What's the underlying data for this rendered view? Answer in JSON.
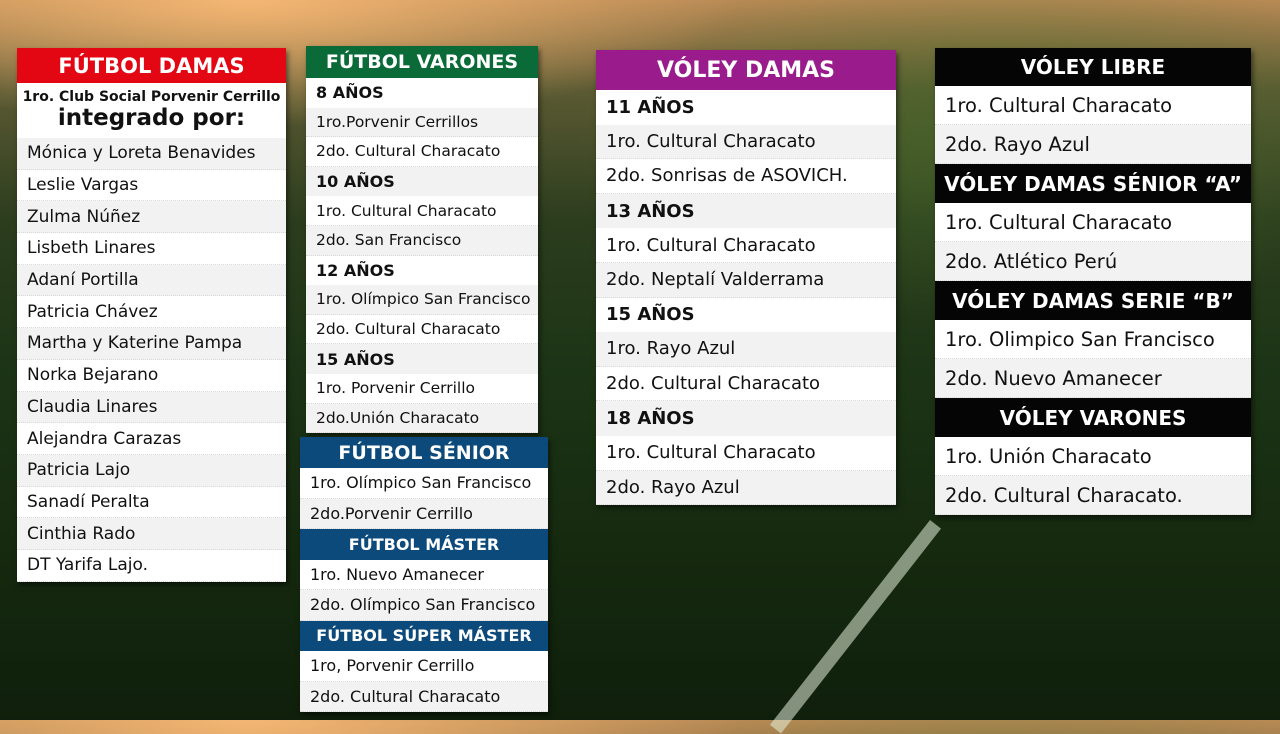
{
  "colors": {
    "futbol_damas": "#e30613",
    "futbol_varones": "#0b6b38",
    "futbol_senior": "#0d4a7c",
    "voley_damas": "#9a1c8c",
    "voley": "#050505"
  },
  "panels": [
    {
      "id": "futbol-damas",
      "color": "#e30613",
      "rows": [
        {
          "type": "head",
          "text": "FÚTBOL DAMAS"
        },
        {
          "type": "item",
          "text": "Mónica y Loreta Benavides"
        },
        {
          "type": "item",
          "text": "Leslie Vargas"
        },
        {
          "type": "item",
          "text": "Zulma Núñez"
        },
        {
          "type": "item",
          "text": "Lisbeth Linares"
        },
        {
          "type": "item",
          "text": "Adaní Portilla"
        },
        {
          "type": "item",
          "text": "Patricia Chávez"
        },
        {
          "type": "item",
          "text": "Martha y Katerine Pampa"
        },
        {
          "type": "item",
          "text": "Norka Bejarano"
        },
        {
          "type": "item",
          "text": "Claudia Linares"
        },
        {
          "type": "item",
          "text": "Alejandra Carazas"
        },
        {
          "type": "item",
          "text": "Patricia Lajo"
        },
        {
          "type": "item",
          "text": "Sanadí Peralta"
        },
        {
          "type": "item",
          "text": "Cinthia Rado"
        },
        {
          "type": "item",
          "text": "DT Yarifa Lajo."
        }
      ],
      "subtitle_line1": "1ro. Club Social Porvenir Cerrillo",
      "subtitle_line2": "integrado por:"
    },
    {
      "id": "futbol-varones",
      "color": "#0b6b38",
      "rows": [
        {
          "type": "head",
          "text": "FÚTBOL VARONES"
        },
        {
          "type": "sub",
          "text": "8 AÑOS"
        },
        {
          "type": "item",
          "text": "1ro.Porvenir Cerrillos"
        },
        {
          "type": "item",
          "text": "2do. Cultural Characato"
        },
        {
          "type": "sub",
          "text": "10 AÑOS"
        },
        {
          "type": "item",
          "text": "1ro. Cultural Characato"
        },
        {
          "type": "item",
          "text": "2do. San Francisco"
        },
        {
          "type": "sub",
          "text": "12 AÑOS"
        },
        {
          "type": "item",
          "text": "1ro. Olímpico San Francisco"
        },
        {
          "type": "item",
          "text": "2do. Cultural Characato"
        },
        {
          "type": "sub",
          "text": "15 AÑOS"
        },
        {
          "type": "item",
          "text": "1ro. Porvenir Cerrillo"
        },
        {
          "type": "item",
          "text": "2do.Unión Characato"
        }
      ]
    },
    {
      "id": "futbol-senior",
      "color": "#0d4a7c",
      "rows": [
        {
          "type": "head",
          "text": "FÚTBOL SÉNIOR"
        },
        {
          "type": "item",
          "text": "1ro. Olímpico San Francisco"
        },
        {
          "type": "item",
          "text": "2do.Porvenir Cerrillo"
        },
        {
          "type": "head",
          "text": "FÚTBOL MÁSTER"
        },
        {
          "type": "item",
          "text": "1ro. Nuevo Amanecer"
        },
        {
          "type": "item",
          "text": "2do. Olímpico San Francisco"
        },
        {
          "type": "head",
          "text": "FÚTBOL SÚPER MÁSTER"
        },
        {
          "type": "item",
          "text": "1ro, Porvenir Cerrillo"
        },
        {
          "type": "item",
          "text": "2do. Cultural Characato"
        }
      ]
    },
    {
      "id": "voley-damas",
      "color": "#9a1c8c",
      "rows": [
        {
          "type": "head",
          "text": "VÓLEY DAMAS"
        },
        {
          "type": "sub",
          "text": "11 AÑOS"
        },
        {
          "type": "item",
          "text": "1ro. Cultural Characato"
        },
        {
          "type": "item",
          "text": "2do. Sonrisas de ASOVICH."
        },
        {
          "type": "sub",
          "text": "13 AÑOS"
        },
        {
          "type": "item",
          "text": "1ro. Cultural Characato"
        },
        {
          "type": "item",
          "text": "2do. Neptalí Valderrama"
        },
        {
          "type": "sub",
          "text": "15 AÑOS"
        },
        {
          "type": "item",
          "text": "1ro. Rayo Azul"
        },
        {
          "type": "item",
          "text": "2do. Cultural Characato"
        },
        {
          "type": "sub",
          "text": "18 AÑOS"
        },
        {
          "type": "item",
          "text": "1ro. Cultural Characato"
        },
        {
          "type": "item",
          "text": "2do. Rayo Azul"
        }
      ]
    },
    {
      "id": "voley",
      "color": "#050505",
      "rows": [
        {
          "type": "head",
          "text": "VÓLEY LIBRE"
        },
        {
          "type": "item",
          "text": "1ro. Cultural Characato"
        },
        {
          "type": "item",
          "text": "2do. Rayo Azul"
        },
        {
          "type": "head",
          "text": "VÓLEY DAMAS SÉNIOR “A”"
        },
        {
          "type": "item",
          "text": "1ro. Cultural Characato"
        },
        {
          "type": "item",
          "text": "2do. Atlético Perú"
        },
        {
          "type": "head",
          "text": "VÓLEY DAMAS SERIE “B”"
        },
        {
          "type": "item",
          "text": "1ro. Olimpico San Francisco"
        },
        {
          "type": "item",
          "text": "2do. Nuevo Amanecer"
        },
        {
          "type": "head",
          "text": "VÓLEY VARONES"
        },
        {
          "type": "item",
          "text": "1ro. Unión Characato"
        },
        {
          "type": "item",
          "text": "2do. Cultural Characato."
        }
      ]
    }
  ]
}
